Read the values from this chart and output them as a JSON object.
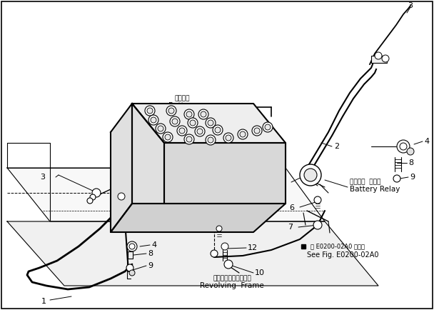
{
  "bg_color": "#ffffff",
  "line_color": "#000000",
  "fig_width": 6.08,
  "fig_height": 4.34,
  "dpi": 100,
  "labels": {
    "battery_jp": "バッテリ",
    "battery_en": "Battery",
    "relay_jp": "バッテリ  リレー",
    "relay_en": "Battery Relay",
    "frame_jp": "レボルビングフレーム",
    "frame_en": "Revolving  Frame",
    "see_fig_jp": "図 E0200-02A0 図参照",
    "see_fig_en": "See Fig. E0200-02A0"
  }
}
